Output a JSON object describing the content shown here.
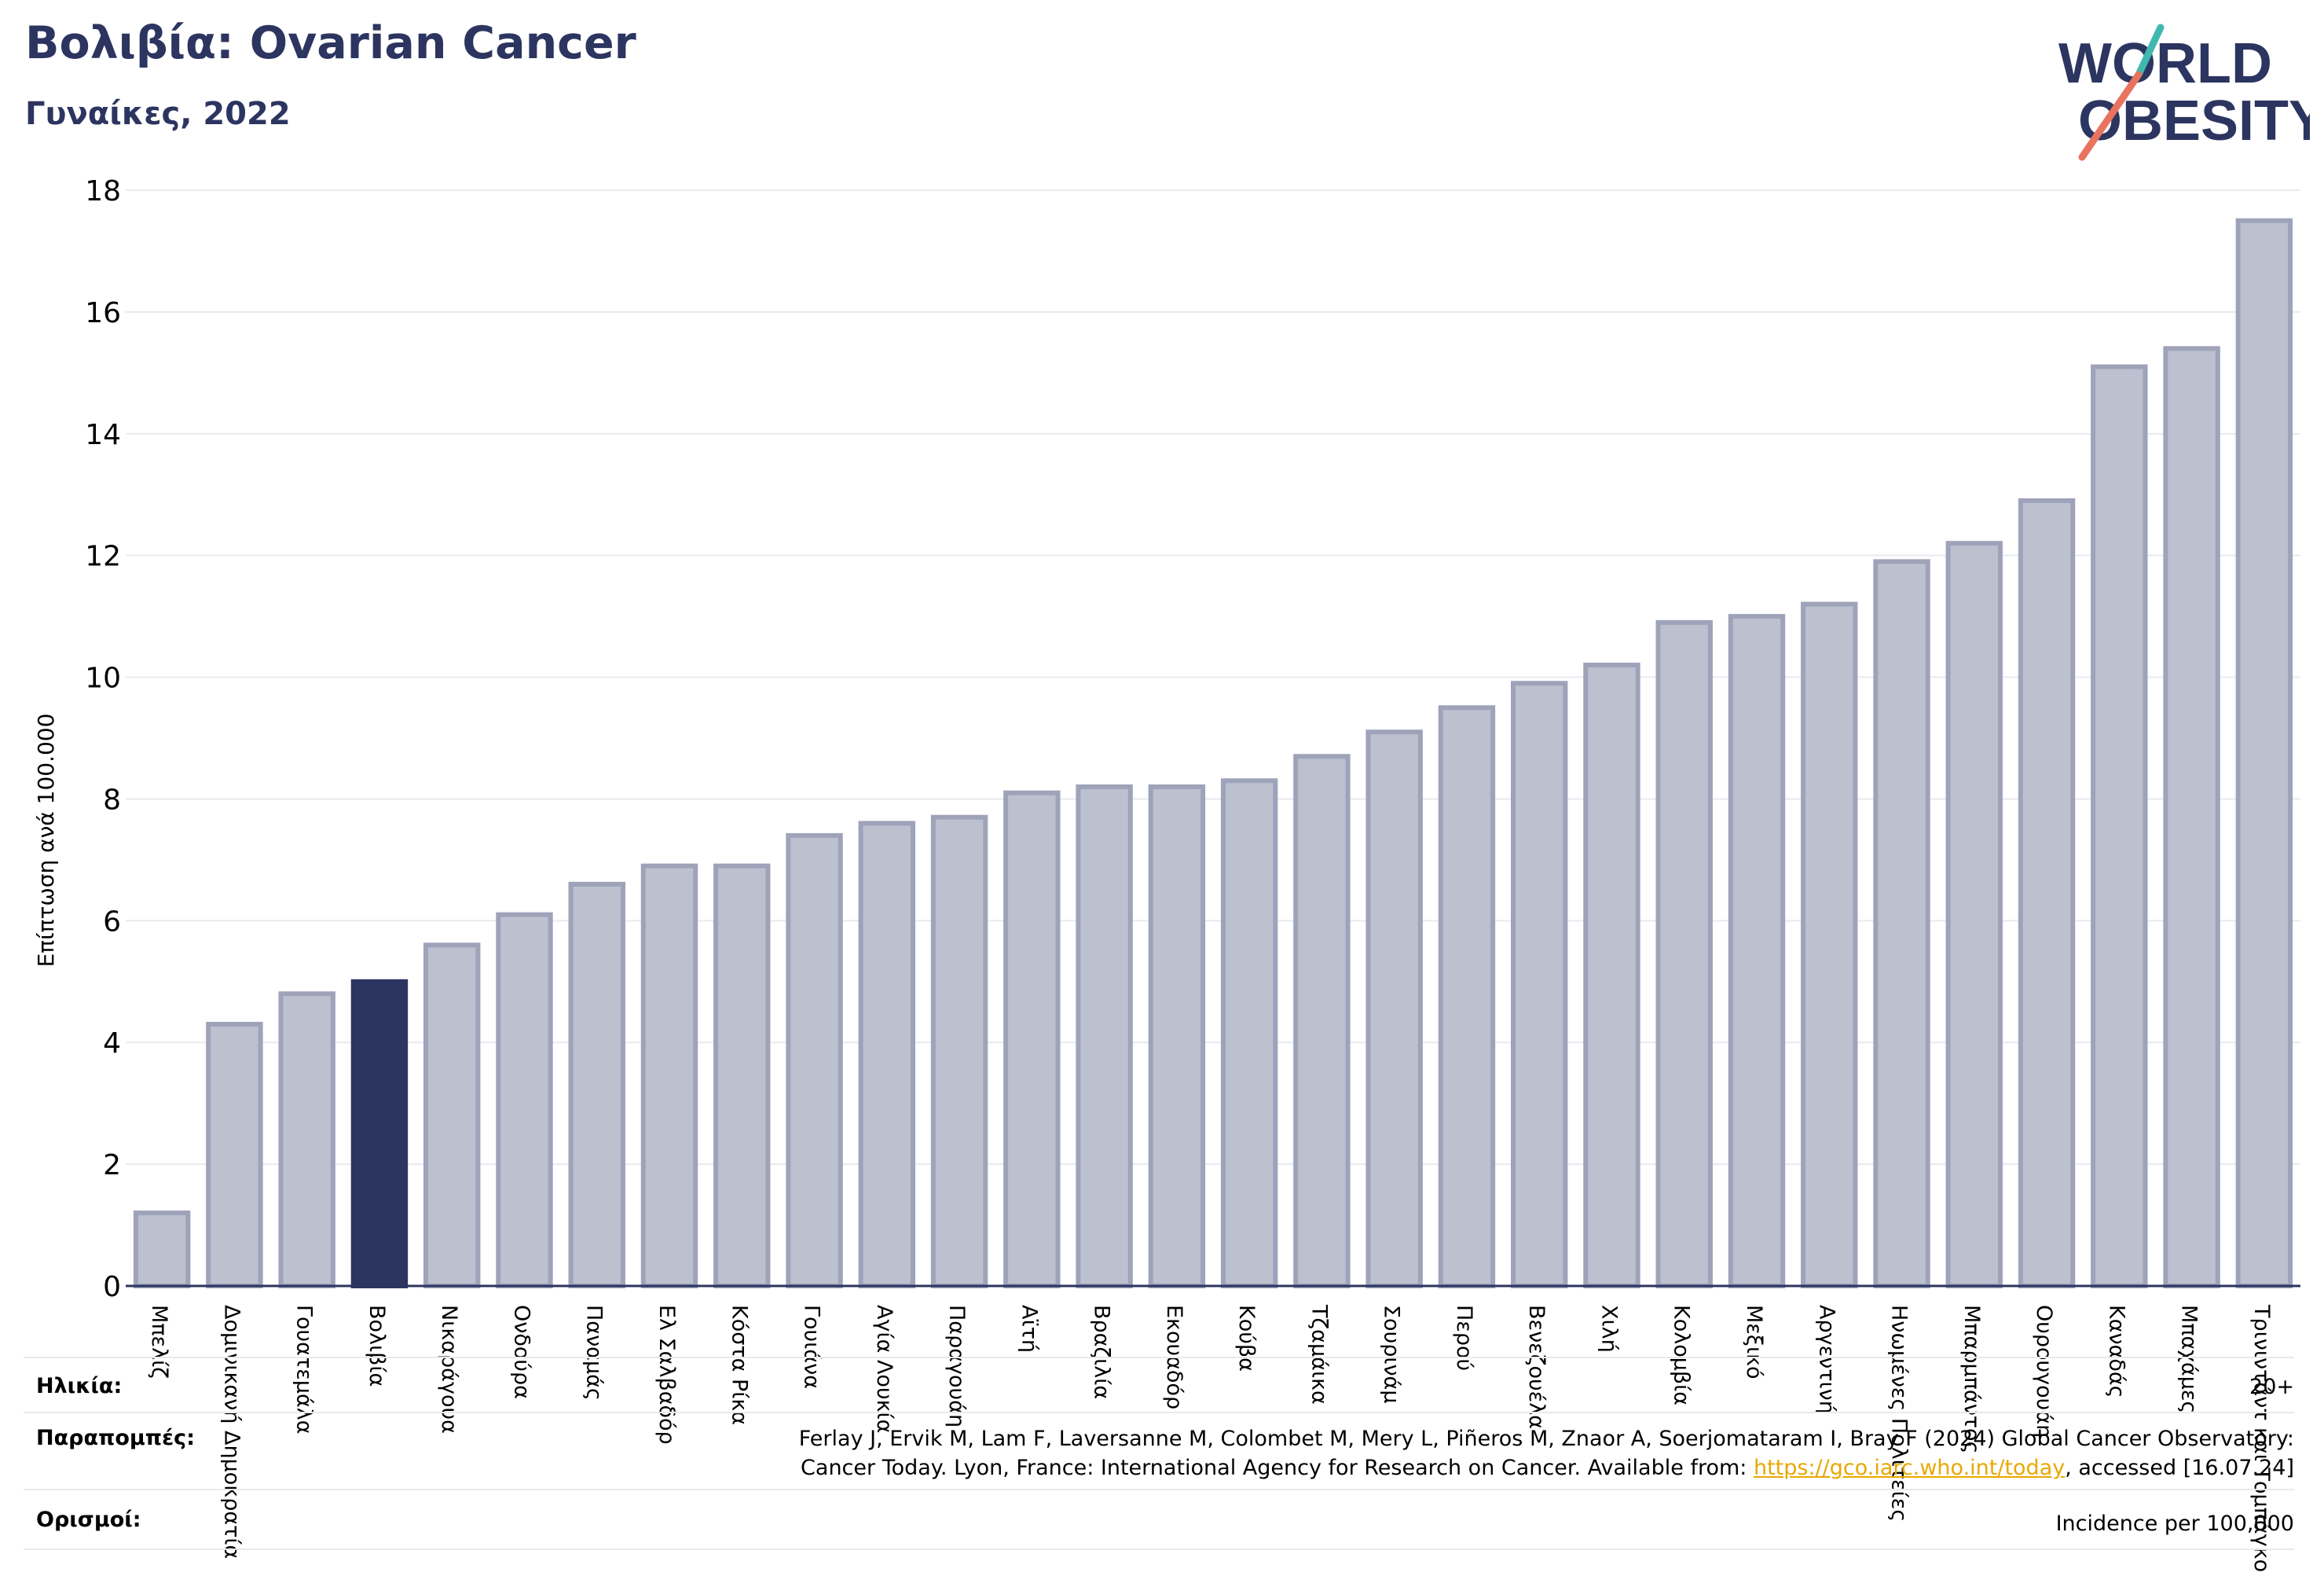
{
  "title": "Βολιβία: Ovarian Cancer",
  "subtitle": "Γυναίκες, 2022",
  "logo": {
    "line1": "WORLD",
    "line2": "OBESITY"
  },
  "colors": {
    "accent": "#2c3560",
    "bar": "#bcc0cf",
    "bar_edge": "#9ea3ba",
    "link": "#e8a800",
    "logo_slash": "#e8735f",
    "logo_teal": "#3fb8b0"
  },
  "chart_data": {
    "type": "bar",
    "ylabel": "Επίπτωση ανά 100.000",
    "xlabel": "",
    "ylim": [
      0,
      18
    ],
    "yticks": [
      0,
      2,
      4,
      6,
      8,
      10,
      12,
      14,
      16,
      18
    ],
    "grid": true,
    "highlight": "Βολιβία",
    "categories": [
      "Μπελίζ",
      "Δομινικανή Δημοκρατία",
      "Γουατεμάλα",
      "Βολιβία",
      "Νικαράγουα",
      "Ονδούρα",
      "Παναμάς",
      "Ελ Σαλβαδόρ",
      "Κόστα Ρίκα",
      "Γουιάνα",
      "Αγία Λουκία",
      "Παραγουάη",
      "Αϊτή",
      "Βραζιλία",
      "Εκουαδόρ",
      "Κούβα",
      "Τζαμάικα",
      "Σουρινάμ",
      "Περού",
      "Βενεζουέλα",
      "Χιλή",
      "Κολομβία",
      "Μεξικό",
      "Αργεντινή",
      "Ηνωμένες Πολιτείες",
      "Μπαρμπάντος",
      "Ουρουγουάη",
      "Καναδάς",
      "Μπαχάμες",
      "Τρινιντάντ και Τομπάγκο"
    ],
    "values": [
      1.2,
      4.3,
      4.8,
      5.0,
      5.6,
      6.1,
      6.6,
      6.9,
      6.9,
      7.4,
      7.6,
      7.7,
      8.1,
      8.2,
      8.2,
      8.3,
      8.7,
      9.1,
      9.5,
      9.9,
      10.2,
      10.9,
      11.0,
      11.2,
      11.9,
      12.2,
      12.9,
      15.1,
      15.4,
      17.5
    ]
  },
  "meta": {
    "age_label": "Ηλικία:",
    "age_value": "20+",
    "refs_label": "Παραπομπές:",
    "refs_line1": "Ferlay J, Ervik M, Lam F, Laversanne M, Colombet M, Mery L, Piñeros M, Znaor A, Soerjomataram I, Bray F (2024) Global Cancer Observatory:",
    "refs_line2_pre": "Cancer Today. Lyon, France: International Agency for Research on Cancer. Available from: ",
    "refs_link": "https://gco.iarc.who.int/today",
    "refs_line2_post": ", accessed [16.07.24]",
    "defs_label": "Ορισμοί:",
    "defs_value": "Incidence per 100,000"
  }
}
